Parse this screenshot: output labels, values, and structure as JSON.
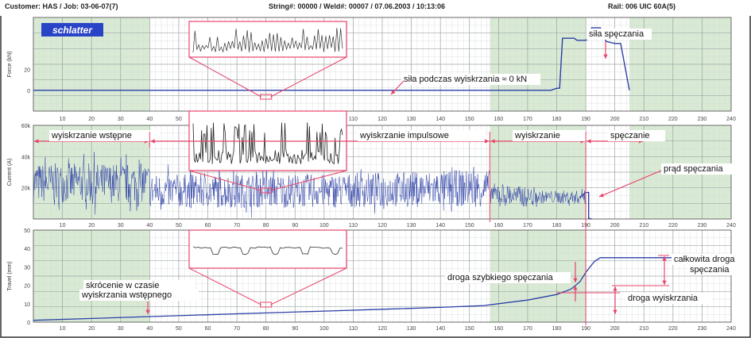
{
  "header": {
    "customer_job": "Customer: HAS / Job: 03-06-07(7)",
    "string_weld": "String#: 00000 / Weld#: 00007 / 07.06.2003 / 10:13:06",
    "rail": "Rail: 006  UIC 60A(5)"
  },
  "brand": {
    "logo_text": "schlatter",
    "color": "#2a44c8"
  },
  "colors": {
    "trace": "#2b3fa6",
    "annotation": "#e8446a",
    "green_band": "#d9ead4"
  },
  "chart_data": [
    {
      "type": "line",
      "panel": "force",
      "ylabel": "Force (kN)",
      "yticks": [
        "20",
        "0"
      ],
      "ylim": [
        -20,
        70
      ],
      "xlim": [
        0,
        240
      ],
      "xticks": [
        "10",
        "20",
        "30",
        "40",
        "50",
        "60",
        "70",
        "80",
        "90",
        "100",
        "110",
        "120",
        "130",
        "140",
        "150",
        "160",
        "170",
        "180",
        "190",
        "200",
        "210",
        "220",
        "230",
        "240"
      ],
      "x": [
        0,
        20,
        40,
        60,
        80,
        100,
        120,
        140,
        160,
        170,
        175,
        178,
        180,
        181,
        182,
        186,
        187,
        190,
        191,
        192,
        193,
        195,
        197,
        200,
        202,
        205
      ],
      "y": [
        0,
        0,
        0,
        0,
        0,
        0,
        0,
        0,
        0,
        0,
        0,
        0,
        2,
        2,
        50,
        50,
        48,
        48,
        50,
        60,
        60,
        60,
        47,
        45,
        45,
        0
      ],
      "annotations": [
        {
          "text": "siła podczas wyiskrzania   ≈ 0 kN"
        },
        {
          "text": "siła spęczania"
        }
      ]
    },
    {
      "type": "line",
      "panel": "current",
      "ylabel": "Current (A)",
      "yticks": [
        "60k",
        "40k",
        "20k"
      ],
      "ylim": [
        0,
        60000
      ],
      "xlim": [
        0,
        240
      ],
      "xticks": [
        "10",
        "20",
        "30",
        "40",
        "50",
        "60",
        "70",
        "80",
        "90",
        "100",
        "110",
        "120",
        "130",
        "140",
        "150",
        "160",
        "170",
        "180",
        "190",
        "200",
        "210",
        "220",
        "230",
        "240"
      ],
      "phases": [
        {
          "label": "wyiskrzanie wstępne",
          "from": 0,
          "to": 40
        },
        {
          "label": "wyiskrzanie impulsowe",
          "from": 40,
          "to": 157
        },
        {
          "label": "wyiskrzanie",
          "from": 157,
          "to": 190
        },
        {
          "label": "spęczanie",
          "from": 190,
          "to": 210
        }
      ],
      "series": [
        {
          "x": [
            0,
            40,
            40.5,
            100,
            157,
            157.5,
            170,
            188,
            190,
            191,
            192
          ],
          "y": [
            23000,
            23000,
            18000,
            18000,
            20000,
            16000,
            14000,
            14000,
            17000,
            17000,
            0
          ]
        }
      ],
      "annotations": [
        {
          "text": "prąd spęczania"
        }
      ]
    },
    {
      "type": "line",
      "panel": "travel",
      "ylabel": "Travel (mm)",
      "yticks": [
        "50",
        "40",
        "30",
        "20",
        "10",
        "0"
      ],
      "ylim": [
        0,
        50
      ],
      "xlim": [
        0,
        240
      ],
      "xticks": [
        "10",
        "20",
        "30",
        "40",
        "50",
        "60",
        "70",
        "80",
        "90",
        "100",
        "110",
        "120",
        "130",
        "140",
        "150",
        "160",
        "170",
        "180",
        "190",
        "200",
        "210",
        "220",
        "230",
        "240"
      ],
      "x": [
        0,
        20,
        40,
        60,
        80,
        100,
        120,
        140,
        155,
        160,
        170,
        180,
        185,
        188,
        190,
        191,
        193,
        195,
        200,
        220,
        240
      ],
      "y": [
        1,
        2,
        3,
        4,
        5,
        6,
        7,
        8,
        9,
        10,
        12,
        15,
        18,
        22,
        27,
        29,
        33,
        35,
        35,
        35,
        35
      ],
      "annotations": [
        {
          "text": "skrócenie w czasie"
        },
        {
          "text": "wyiskrzania wstępnego"
        },
        {
          "text": "droga szybkiego spęczania"
        },
        {
          "text": "całkowita droga"
        },
        {
          "text": "spęczania"
        },
        {
          "text": "droga wyiskrzania"
        }
      ]
    }
  ]
}
